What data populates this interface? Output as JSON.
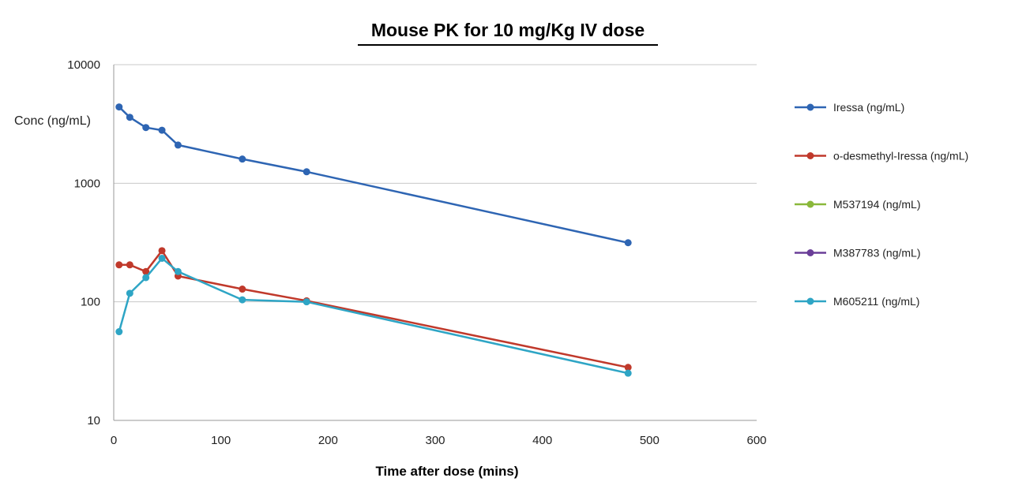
{
  "chart_data": {
    "type": "line",
    "title": "Mouse PK for 10 mg/Kg IV dose",
    "xlabel": "Time after dose (mins)",
    "ylabel": "Conc (ng/mL)",
    "xlim": [
      0,
      600
    ],
    "ylim": [
      10,
      10000
    ],
    "yscale": "log",
    "grid": "horizontal",
    "legend_position": "right",
    "xticks": [
      0,
      100,
      200,
      300,
      400,
      500,
      600
    ],
    "yticks": [
      10,
      100,
      1000,
      10000
    ],
    "xtick_labels": [
      "0",
      "100",
      "200",
      "300",
      "400",
      "500",
      "600"
    ],
    "ytick_labels": [
      "10",
      "100",
      "1000",
      "10000"
    ],
    "series": [
      {
        "name": "Iressa (ng/mL)",
        "color": "#2e65b3",
        "x": [
          5,
          15,
          30,
          45,
          60,
          120,
          180,
          480
        ],
        "y": [
          4400,
          3600,
          2950,
          2800,
          2100,
          1600,
          1250,
          315
        ]
      },
      {
        "name": "o-desmethyl-Iressa (ng/mL)",
        "color": "#c0392b",
        "x": [
          5,
          15,
          30,
          45,
          60,
          120,
          180,
          480
        ],
        "y": [
          205,
          205,
          180,
          270,
          165,
          128,
          102,
          28
        ]
      },
      {
        "name": "M537194 (ng/mL)",
        "color": "#8ab83b",
        "x": [],
        "y": []
      },
      {
        "name": "M387783 (ng/mL)",
        "color": "#6a3e98",
        "x": [],
        "y": []
      },
      {
        "name": "M605211 (ng/mL)",
        "color": "#2ea5c5",
        "x": [
          5,
          15,
          30,
          45,
          60,
          120,
          180,
          480
        ],
        "y": [
          56,
          118,
          160,
          233,
          180,
          104,
          100,
          25
        ]
      }
    ]
  }
}
